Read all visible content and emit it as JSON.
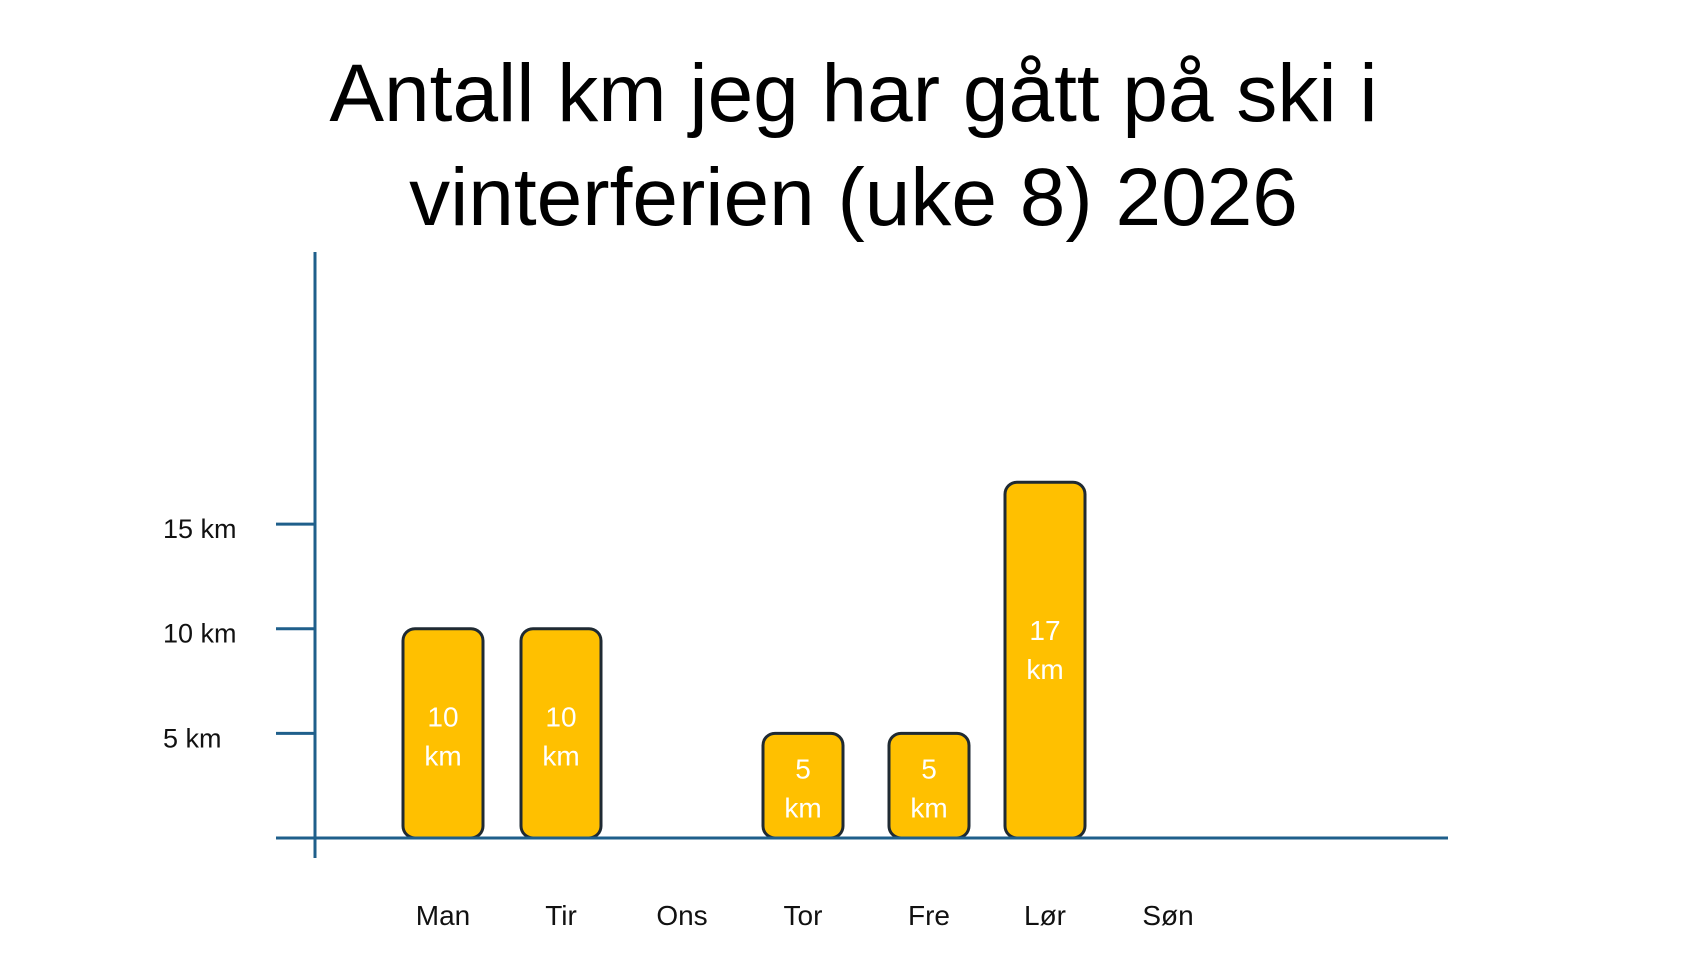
{
  "chart_data": {
    "type": "bar",
    "title_lines": [
      "Antall km jeg har gått på ski i",
      "vinterferien (uke 8) 2026"
    ],
    "categories": [
      "Man",
      "Tir",
      "Ons",
      "Tor",
      "Fre",
      "Lør",
      "Søn"
    ],
    "values": [
      10,
      10,
      0,
      5,
      5,
      17,
      0
    ],
    "bar_labels": [
      [
        "10",
        "km"
      ],
      [
        "10",
        "km"
      ],
      null,
      [
        "5",
        "km"
      ],
      [
        "5",
        "km"
      ],
      [
        "17",
        "km"
      ],
      null
    ],
    "y_ticks": [
      {
        "value": 5,
        "label": "5 km"
      },
      {
        "value": 10,
        "label": "10 km"
      },
      {
        "value": 15,
        "label": "15 km"
      }
    ],
    "ylim": [
      0,
      28
    ],
    "grid": false,
    "legend": "none",
    "colors": {
      "bar_fill": "#FFC000",
      "bar_stroke": "#1F2A33",
      "axis": "#1F5F8B"
    }
  }
}
